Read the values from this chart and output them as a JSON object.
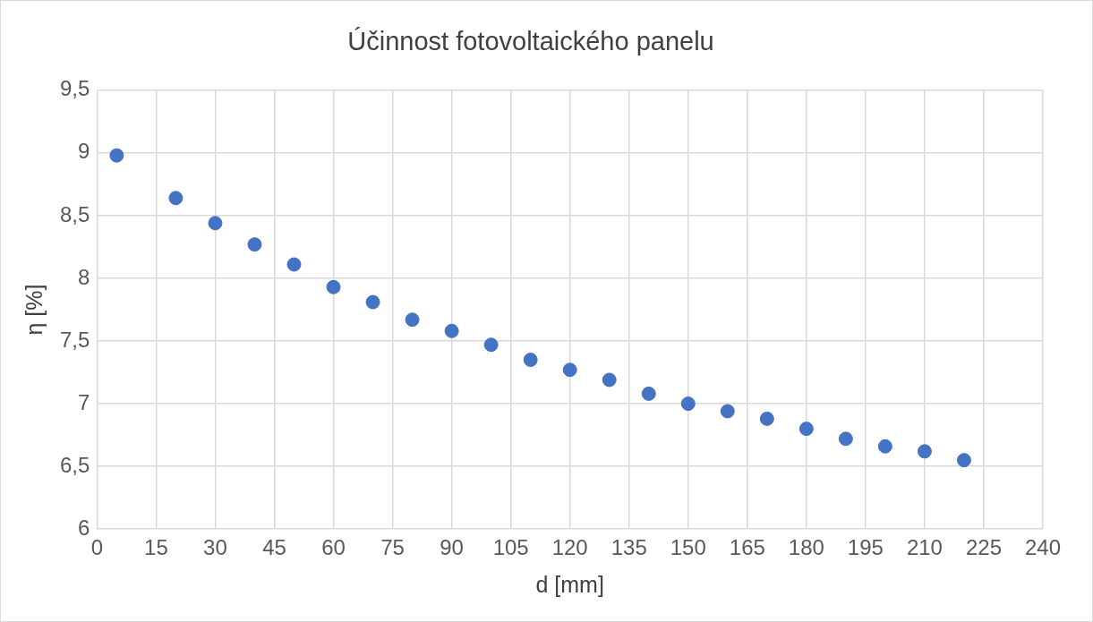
{
  "chart_data": {
    "type": "scatter",
    "title": "Účinnost fotovoltaického panelu",
    "xlabel": "d [mm]",
    "ylabel": "η [%]",
    "x": [
      5,
      20,
      30,
      40,
      50,
      60,
      70,
      80,
      90,
      100,
      110,
      120,
      130,
      140,
      150,
      160,
      170,
      180,
      190,
      200,
      210,
      220
    ],
    "series": [
      {
        "color": "#4472c4",
        "values": [
          8.98,
          8.64,
          8.44,
          8.27,
          8.11,
          7.93,
          7.81,
          7.67,
          7.58,
          7.47,
          7.35,
          7.27,
          7.19,
          7.08,
          7.0,
          6.94,
          6.88,
          6.8,
          6.72,
          6.66,
          6.62,
          6.55
        ]
      }
    ],
    "xlim": [
      0,
      240
    ],
    "xticks": [
      0,
      15,
      30,
      45,
      60,
      75,
      90,
      105,
      120,
      135,
      150,
      165,
      180,
      195,
      210,
      225,
      240
    ],
    "ylim": [
      6,
      9.5
    ],
    "yticks": [
      6,
      {
        "value": 6.5,
        "label": "6,5"
      },
      7,
      {
        "value": 7.5,
        "label": "7,5"
      },
      8,
      {
        "value": 8.5,
        "label": "8,5"
      },
      9,
      {
        "value": 9.5,
        "label": "9,5"
      }
    ],
    "grid": true,
    "legend": false,
    "marker": "circle"
  }
}
